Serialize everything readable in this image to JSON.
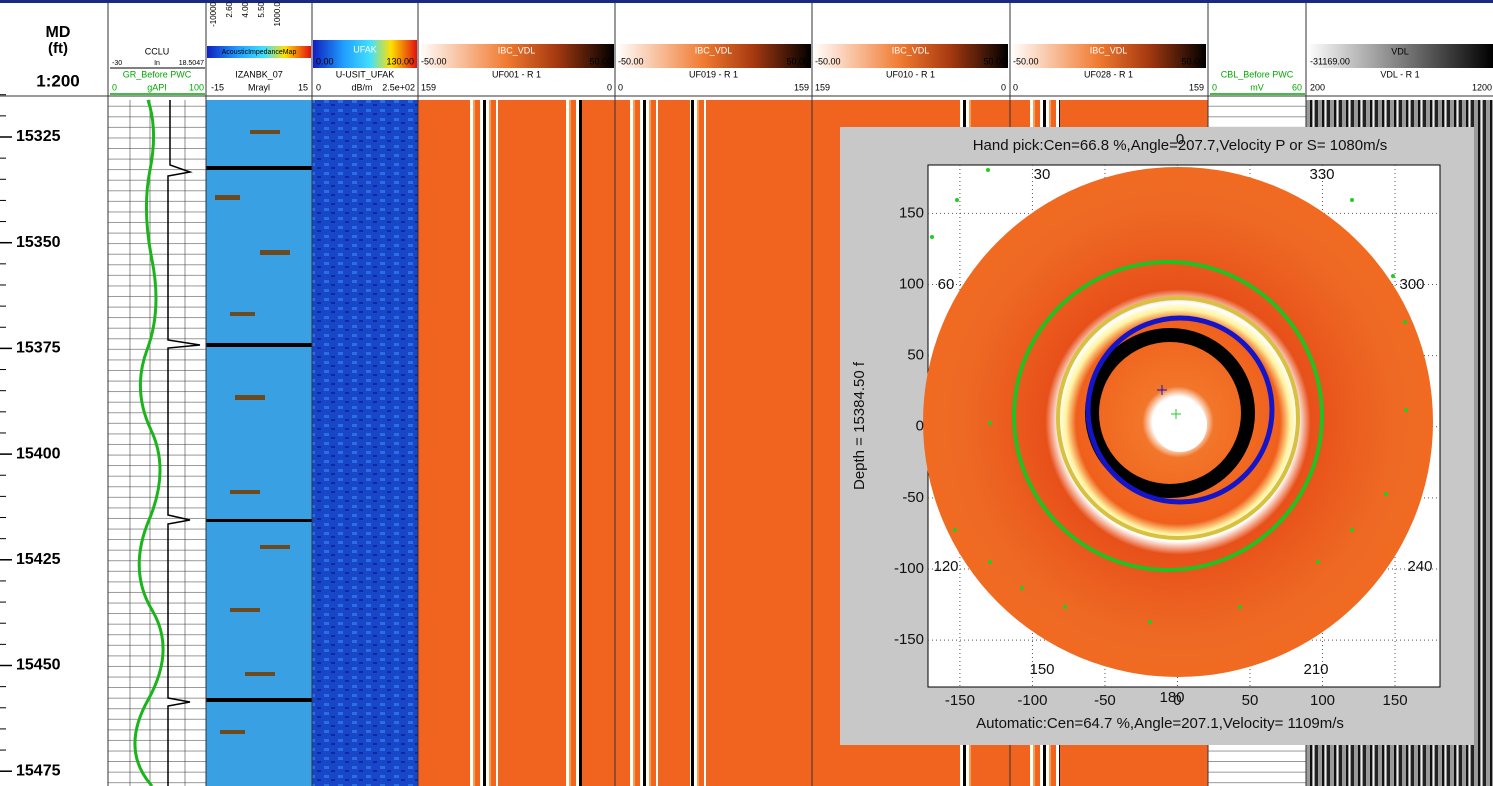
{
  "depth_header": {
    "title": "MD",
    "unit": "(ft)",
    "scale": "1:200",
    "labels": [
      15325,
      15350,
      15375,
      15400,
      15425,
      15450,
      15475
    ]
  },
  "tracks": [
    {
      "top_name": "CCLU",
      "top_left": "-30",
      "top_unit": "In",
      "top_right": "18.5047",
      "name": "GR_Before PWC",
      "left": "0",
      "unit": "gAPI",
      "right": "100"
    },
    {
      "scale_ticks": [
        "-10000",
        "2.60",
        "4.00",
        "5.50",
        "1000.0"
      ],
      "colorbar_label": "AcousticImpedanceMap",
      "name": "IZANBK_07",
      "left": "-15",
      "unit": "Mrayl",
      "right": "15"
    },
    {
      "colorbar_label": "UFAK",
      "colorbar_left": "0.00",
      "colorbar_right": "130.00",
      "name": "U-USIT_UFAK",
      "left": "0",
      "unit": "dB/m",
      "right": "2.5e+02"
    },
    {
      "colorbar_label": "IBC_VDL",
      "colorbar_left": "-50.00",
      "colorbar_right": "50.00",
      "name": "UF001 - R 1",
      "left": "159",
      "right": "0"
    },
    {
      "colorbar_label": "IBC_VDL",
      "colorbar_left": "-50.00",
      "colorbar_right": "50.00",
      "name": "UF019 - R 1",
      "left": "0",
      "right": "159"
    },
    {
      "colorbar_label": "IBC_VDL",
      "colorbar_left": "-50.00",
      "colorbar_right": "50.00",
      "name": "UF010 - R 1",
      "left": "159",
      "right": "0"
    },
    {
      "colorbar_label": "IBC_VDL",
      "colorbar_left": "-50.00",
      "colorbar_right": "50.00",
      "name": "UF028 - R 1",
      "left": "0",
      "right": "159"
    },
    {
      "name": "CBL_Before PWC",
      "left": "0",
      "unit": "mV",
      "right": "60"
    },
    {
      "colorbar_label": "VDL",
      "colorbar_left": "-31169.00",
      "name": "VDL - R 1",
      "left": "200",
      "right": "1200"
    }
  ],
  "inset": {
    "title": "Hand pick:Cen=66.8 %,Angle=207.7,Velocity P or S=  1080m/s",
    "footer": "Automatic:Cen=64.7 %,Angle=207.1,Velocity=  1109m/s",
    "y_label": "Depth = 15384.50 f",
    "xlim": [
      -172,
      181
    ],
    "ylim": [
      -183,
      184
    ],
    "xticks": [
      -150,
      -100,
      -50,
      0,
      50,
      100,
      150
    ],
    "yticks": [
      -150,
      -100,
      -50,
      0,
      50,
      100,
      150
    ],
    "angle_labels": [
      "0",
      "30",
      "330",
      "60",
      "300",
      "120",
      "240",
      "150",
      "210",
      "180"
    ]
  }
}
